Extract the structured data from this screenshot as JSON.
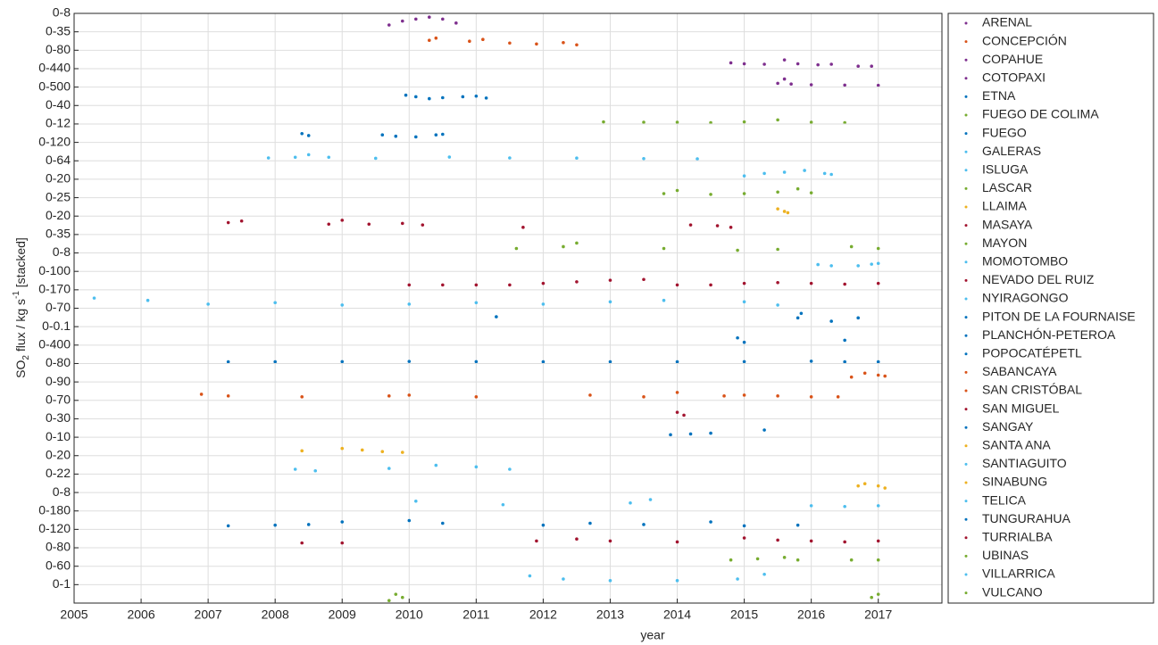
{
  "chart_data": {
    "type": "scatter",
    "ylabel": [
      "SO",
      "2",
      " flux / kg s",
      "-1",
      " [stacked]"
    ],
    "xlabel": "year",
    "xlim": [
      2005,
      2017.95
    ],
    "xticks": [
      2005,
      2006,
      2007,
      2008,
      2009,
      2010,
      2011,
      2012,
      2013,
      2014,
      2015,
      2016,
      2017
    ],
    "grid": true,
    "legend": "outside-right",
    "series": [
      {
        "name": "ARENAL",
        "color": "#7E2F8E",
        "range_label": "0-8",
        "ylim": [
          0,
          8
        ],
        "x": [
          2009.7,
          2009.9,
          2010.1,
          2010.3,
          2010.5,
          2010.7
        ],
        "values": [
          3,
          5,
          6,
          7,
          6,
          4
        ]
      },
      {
        "name": "CONCEPCIÓN",
        "color": "#D95319",
        "range_label": "0-35",
        "ylim": [
          0,
          35
        ],
        "x": [
          2010.3,
          2010.4,
          2010.9,
          2011.1,
          2011.5,
          2011.9,
          2012.3,
          2012.5
        ],
        "values": [
          20,
          25,
          18,
          22,
          14,
          12,
          15,
          10
        ]
      },
      {
        "name": "COPAHUE",
        "color": "#7E2F8E",
        "range_label": "0-80",
        "ylim": [
          0,
          80
        ],
        "x": [
          2014.8,
          2015.0,
          2015.3,
          2015.6,
          2015.8,
          2016.1,
          2016.3,
          2016.7,
          2016.9
        ],
        "values": [
          25,
          20,
          18,
          40,
          20,
          15,
          18,
          8,
          8
        ]
      },
      {
        "name": "COTOPAXI",
        "color": "#7E2F8E",
        "range_label": "0-440",
        "ylim": [
          0,
          440
        ],
        "x": [
          2015.5,
          2015.6,
          2015.7,
          2016.0,
          2016.5,
          2017.0
        ],
        "values": [
          80,
          200,
          60,
          40,
          30,
          25
        ]
      },
      {
        "name": "ETNA",
        "color": "#0072BD",
        "range_label": "0-500",
        "ylim": [
          0,
          500
        ],
        "x": [
          2009.95,
          2010.1,
          2010.3,
          2010.5,
          2010.8,
          2011.0,
          2011.15
        ],
        "values": [
          300,
          250,
          190,
          220,
          250,
          270,
          210
        ]
      },
      {
        "name": "FUEGO DE COLIMA",
        "color": "#77AC30",
        "range_label": "0-40",
        "ylim": [
          0,
          40
        ],
        "x": [
          2012.9,
          2013.5,
          2014.0,
          2014.5,
          2015.0,
          2015.5,
          2016.0,
          2016.5
        ],
        "values": [
          3,
          2,
          2,
          1,
          3,
          8,
          2,
          1
        ]
      },
      {
        "name": "FUEGO",
        "color": "#0072BD",
        "range_label": "0-12",
        "ylim": [
          0,
          12
        ],
        "x": [
          2008.4,
          2008.5,
          2009.6,
          2009.8,
          2010.1,
          2010.4,
          2010.5
        ],
        "values": [
          6,
          4.5,
          5,
          4,
          3.5,
          5,
          5.5
        ]
      },
      {
        "name": "GALERAS",
        "color": "#4DBEEE",
        "range_label": "0-120",
        "ylim": [
          0,
          120
        ],
        "x": [
          2007.9,
          2008.3,
          2008.5,
          2008.8,
          2009.5,
          2010.6,
          2011.5,
          2012.5,
          2013.5,
          2014.3
        ],
        "values": [
          15,
          20,
          40,
          20,
          12,
          22,
          15,
          14,
          10,
          8
        ]
      },
      {
        "name": "ISLUGA",
        "color": "#4DBEEE",
        "range_label": "0-64",
        "ylim": [
          0,
          64
        ],
        "x": [
          2015.0,
          2015.3,
          2015.6,
          2015.9,
          2016.2,
          2016.3
        ],
        "values": [
          10,
          20,
          25,
          32,
          20,
          16
        ]
      },
      {
        "name": "LASCAR",
        "color": "#77AC30",
        "range_label": "0-20",
        "ylim": [
          0,
          20
        ],
        "x": [
          2013.8,
          2014.0,
          2014.5,
          2015.0,
          2015.5,
          2015.8,
          2016.0
        ],
        "values": [
          4,
          8,
          3,
          4,
          6,
          10,
          5
        ]
      },
      {
        "name": "LLAIMA",
        "color": "#EDB120",
        "range_label": "0-25",
        "ylim": [
          0,
          25
        ],
        "x": [
          2015.5,
          2015.6,
          2015.65
        ],
        "values": [
          10,
          6,
          4
        ]
      },
      {
        "name": "MASAYA",
        "color": "#A2142F",
        "range_label": "0-20",
        "ylim": [
          0,
          20
        ],
        "x": [
          2007.3,
          2007.5,
          2008.8,
          2009.0,
          2009.4,
          2009.9,
          2010.2,
          2011.7,
          2014.2,
          2014.6,
          2014.8
        ],
        "values": [
          14,
          16,
          12,
          17,
          12,
          13,
          11,
          8,
          11,
          10,
          8
        ]
      },
      {
        "name": "MAYON",
        "color": "#77AC30",
        "range_label": "0-35",
        "ylim": [
          0,
          35
        ],
        "x": [
          2011.6,
          2012.3,
          2012.5,
          2013.8,
          2014.9,
          2015.5,
          2016.6,
          2017.0
        ],
        "values": [
          8,
          12,
          20,
          8,
          4,
          6,
          12,
          8
        ]
      },
      {
        "name": "MOMOTOMBO",
        "color": "#4DBEEE",
        "range_label": "0-8",
        "ylim": [
          0,
          8
        ],
        "x": [
          2016.1,
          2016.3,
          2016.7,
          2016.9,
          2017.0
        ],
        "values": [
          3,
          2.4,
          2.4,
          3.2,
          3.6
        ]
      },
      {
        "name": "NEVADO DEL RUIZ",
        "color": "#A2142F",
        "range_label": "0-100",
        "ylim": [
          0,
          100
        ],
        "x": [
          2010.0,
          2010.5,
          2011.0,
          2011.5,
          2012.0,
          2012.5,
          2013.0,
          2013.5,
          2014.0,
          2014.5,
          2015.0,
          2015.5,
          2016.0,
          2016.5,
          2017.0
        ],
        "values": [
          25,
          25,
          25,
          25,
          35,
          45,
          55,
          60,
          25,
          25,
          35,
          40,
          35,
          30,
          35
        ]
      },
      {
        "name": "NYIRAGONGO",
        "color": "#4DBEEE",
        "range_label": "0-170",
        "ylim": [
          0,
          170
        ],
        "x": [
          2005.3,
          2006.1,
          2007.0,
          2008.0,
          2009.0,
          2010.0,
          2011.0,
          2012.0,
          2013.0,
          2013.8,
          2015.0,
          2015.5
        ],
        "values": [
          100,
          75,
          35,
          50,
          25,
          35,
          50,
          35,
          60,
          75,
          60,
          25
        ]
      },
      {
        "name": "PITON DE LA FOURNAISE",
        "color": "#0072BD",
        "range_label": "0-70",
        "ylim": [
          0,
          70
        ],
        "x": [
          2011.3,
          2015.8,
          2015.85,
          2016.3,
          2016.7
        ],
        "values": [
          40,
          35,
          55,
          20,
          35
        ]
      },
      {
        "name": "PLANCHÓN-PETEROA",
        "color": "#0072BD",
        "range_label": "0-0.1",
        "ylim": [
          0,
          0.1
        ],
        "x": [
          2014.9,
          2015.0,
          2016.5
        ],
        "values": [
          0.04,
          0.012,
          0.025
        ]
      },
      {
        "name": "POPOCATÉPETL",
        "color": "#0072BD",
        "range_label": "0-400",
        "ylim": [
          0,
          400
        ],
        "x": [
          2007.3,
          2008.0,
          2009.0,
          2010.0,
          2011.0,
          2012.0,
          2013.0,
          2014.0,
          2015.0,
          2016.0,
          2016.5,
          2017.0
        ],
        "values": [
          20,
          22,
          25,
          30,
          25,
          20,
          22,
          20,
          25,
          35,
          20,
          20
        ]
      },
      {
        "name": "SABANCAYA",
        "color": "#D95319",
        "range_label": "0-80",
        "ylim": [
          0,
          80
        ],
        "x": [
          2016.6,
          2016.8,
          2017.0,
          2017.1
        ],
        "values": [
          20,
          40,
          30,
          25
        ]
      },
      {
        "name": "SAN CRISTÓBAL",
        "color": "#D95319",
        "range_label": "0-90",
        "ylim": [
          0,
          90
        ],
        "x": [
          2006.9,
          2007.3,
          2008.4,
          2009.7,
          2010.0,
          2011.0,
          2012.7,
          2013.5,
          2014.0,
          2014.7,
          2015.0,
          2015.5,
          2016.0,
          2016.4
        ],
        "values": [
          30,
          20,
          15,
          20,
          25,
          15,
          25,
          15,
          40,
          20,
          25,
          20,
          15,
          15
        ]
      },
      {
        "name": "SAN MIGUEL",
        "color": "#A2142F",
        "range_label": "0-70",
        "ylim": [
          0,
          70
        ],
        "x": [
          2014.0,
          2014.1
        ],
        "values": [
          25,
          12
        ]
      },
      {
        "name": "SANGAY",
        "color": "#0072BD",
        "range_label": "0-30",
        "ylim": [
          0,
          30
        ],
        "x": [
          2013.9,
          2014.2,
          2014.5,
          2015.3
        ],
        "values": [
          3,
          4.5,
          6,
          12
        ]
      },
      {
        "name": "SANTA ANA",
        "color": "#EDB120",
        "range_label": "0-10",
        "ylim": [
          0,
          10
        ],
        "x": [
          2008.4,
          2009.0,
          2009.3,
          2009.6,
          2009.9
        ],
        "values": [
          2.5,
          4,
          3,
          2,
          1.5
        ]
      },
      {
        "name": "SANTIAGUITO",
        "color": "#4DBEEE",
        "range_label": "0-20",
        "ylim": [
          0,
          20
        ],
        "x": [
          2008.3,
          2008.6,
          2009.7,
          2010.4,
          2011.0,
          2011.5
        ],
        "values": [
          5,
          3,
          6,
          10,
          8,
          5
        ]
      },
      {
        "name": "SINABUNG",
        "color": "#EDB120",
        "range_label": "0-22",
        "ylim": [
          0,
          22
        ],
        "x": [
          2016.7,
          2016.8,
          2017.0,
          2017.1
        ],
        "values": [
          8,
          11,
          8,
          5
        ]
      },
      {
        "name": "TELICA",
        "color": "#4DBEEE",
        "range_label": "0-8",
        "ylim": [
          0,
          8
        ],
        "x": [
          2010.1,
          2011.4,
          2013.3,
          2013.6,
          2016.0,
          2016.5,
          2017.0
        ],
        "values": [
          4.5,
          2.7,
          3.6,
          5.3,
          2.2,
          1.8,
          2.2
        ]
      },
      {
        "name": "TUNGURAHUA",
        "color": "#0072BD",
        "range_label": "0-180",
        "ylim": [
          0,
          180
        ],
        "x": [
          2007.3,
          2008.0,
          2008.5,
          2009.0,
          2010.0,
          2010.5,
          2012.0,
          2012.7,
          2013.5,
          2014.5,
          2015.0,
          2015.8
        ],
        "values": [
          30,
          38,
          45,
          75,
          90,
          60,
          38,
          60,
          45,
          75,
          30,
          38
        ]
      },
      {
        "name": "TURRIALBA",
        "color": "#A2142F",
        "range_label": "0-120",
        "ylim": [
          0,
          120
        ],
        "x": [
          2008.4,
          2009.0,
          2011.9,
          2012.5,
          2013.0,
          2014.0,
          2015.0,
          2015.5,
          2016.0,
          2016.5,
          2017.0
        ],
        "values": [
          30,
          30,
          45,
          60,
          45,
          38,
          68,
          52,
          45,
          38,
          45
        ]
      },
      {
        "name": "UBINAS",
        "color": "#77AC30",
        "range_label": "0-80",
        "ylim": [
          0,
          80
        ],
        "x": [
          2014.8,
          2015.2,
          2015.6,
          2015.8,
          2016.6,
          2017.0
        ],
        "values": [
          27,
          33,
          40,
          27,
          27,
          27
        ]
      },
      {
        "name": "VILLARRICA",
        "color": "#4DBEEE",
        "range_label": "0-60",
        "ylim": [
          0,
          60
        ],
        "x": [
          2011.8,
          2012.3,
          2013.0,
          2014.0,
          2014.9,
          2015.3
        ],
        "values": [
          30,
          18,
          12,
          12,
          18,
          36
        ]
      },
      {
        "name": "VULCANO",
        "color": "#77AC30",
        "range_label": "0-1",
        "ylim": [
          0,
          1
        ],
        "x": [
          2009.7,
          2009.8,
          2009.9,
          2016.9,
          2017.0
        ],
        "values": [
          0.1,
          0.5,
          0.3,
          0.3,
          0.5
        ]
      }
    ]
  }
}
